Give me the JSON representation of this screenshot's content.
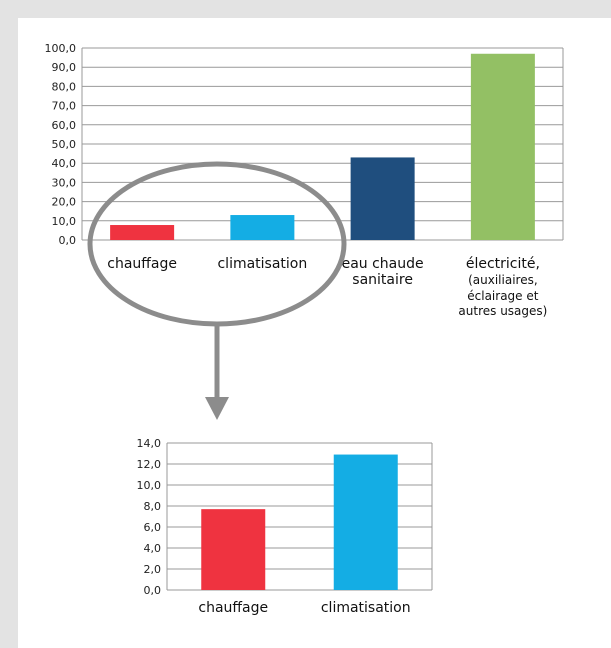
{
  "chart_data": [
    {
      "type": "bar",
      "categories": [
        "chauffage",
        "climatisation",
        "eau chaude sanitaire",
        "électricité, (auxiliaires, éclairage et autres usages)"
      ],
      "category_label_lines": [
        [
          "chauffage"
        ],
        [
          "climatisation"
        ],
        [
          "eau chaude",
          "sanitaire"
        ],
        [
          "électricité,",
          "(auxiliaires,",
          "éclairage et",
          "autres usages)"
        ]
      ],
      "values": [
        7.8,
        13.0,
        43.0,
        97.0
      ],
      "colors": [
        "#ef3340",
        "#14ade4",
        "#1f4e7e",
        "#93c064"
      ],
      "ylim": [
        0,
        100
      ],
      "yticks": [
        "0,0",
        "10,0",
        "20,0",
        "30,0",
        "40,0",
        "50,0",
        "60,0",
        "70,0",
        "80,0",
        "90,0",
        "100,0"
      ],
      "grid": true,
      "title": "",
      "xlabel": "",
      "ylabel": ""
    },
    {
      "type": "bar",
      "categories": [
        "chauffage",
        "climatisation"
      ],
      "category_label_lines": [
        [
          "chauffage"
        ],
        [
          "climatisation"
        ]
      ],
      "values": [
        7.7,
        12.9
      ],
      "colors": [
        "#ef3340",
        "#14ade4"
      ],
      "ylim": [
        0,
        14
      ],
      "yticks": [
        "0,0",
        "2,0",
        "4,0",
        "6,0",
        "8,0",
        "10,0",
        "12,0",
        "14,0"
      ],
      "grid": true,
      "title": "",
      "xlabel": "",
      "ylabel": ""
    }
  ],
  "annotation": {
    "ellipse_color": "#8c8c8c",
    "arrow_color": "#8c8c8c"
  },
  "colors": {
    "background": "#e3e3e3",
    "panel": "#ffffff",
    "gridline": "#999999"
  }
}
